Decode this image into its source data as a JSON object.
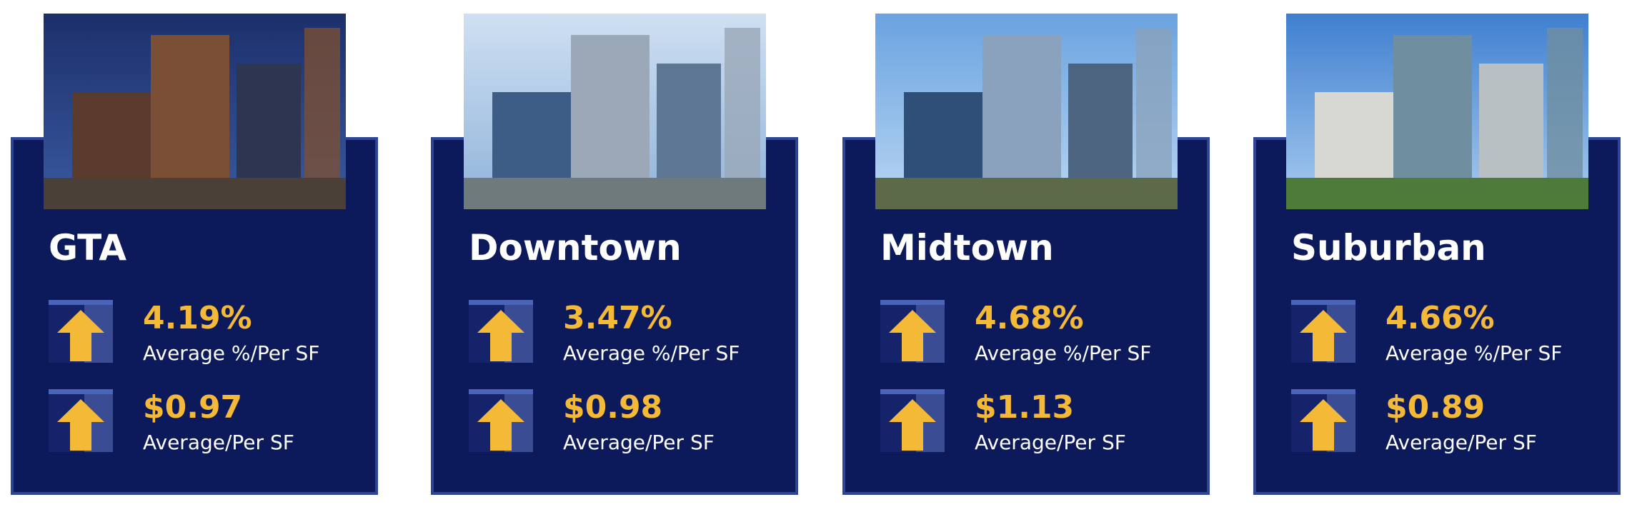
{
  "cards": [
    {
      "title": "GTA",
      "metrics": [
        {
          "value": "4.19%",
          "label": "Average %/Per SF"
        },
        {
          "value": "$0.97",
          "label": "Average/Per SF"
        }
      ]
    },
    {
      "title": "Downtown",
      "metrics": [
        {
          "value": "3.47%",
          "label": "Average %/Per SF"
        },
        {
          "value": "$0.98",
          "label": "Average/Per SF"
        }
      ]
    },
    {
      "title": "Midtown",
      "metrics": [
        {
          "value": "4.68%",
          "label": "Average %/Per SF"
        },
        {
          "value": "$1.13",
          "label": "Average/Per SF"
        }
      ]
    },
    {
      "title": "Suburban",
      "metrics": [
        {
          "value": "4.66%",
          "label": "Average %/Per SF"
        },
        {
          "value": "$0.89",
          "label": "Average/Per SF"
        }
      ]
    }
  ]
}
